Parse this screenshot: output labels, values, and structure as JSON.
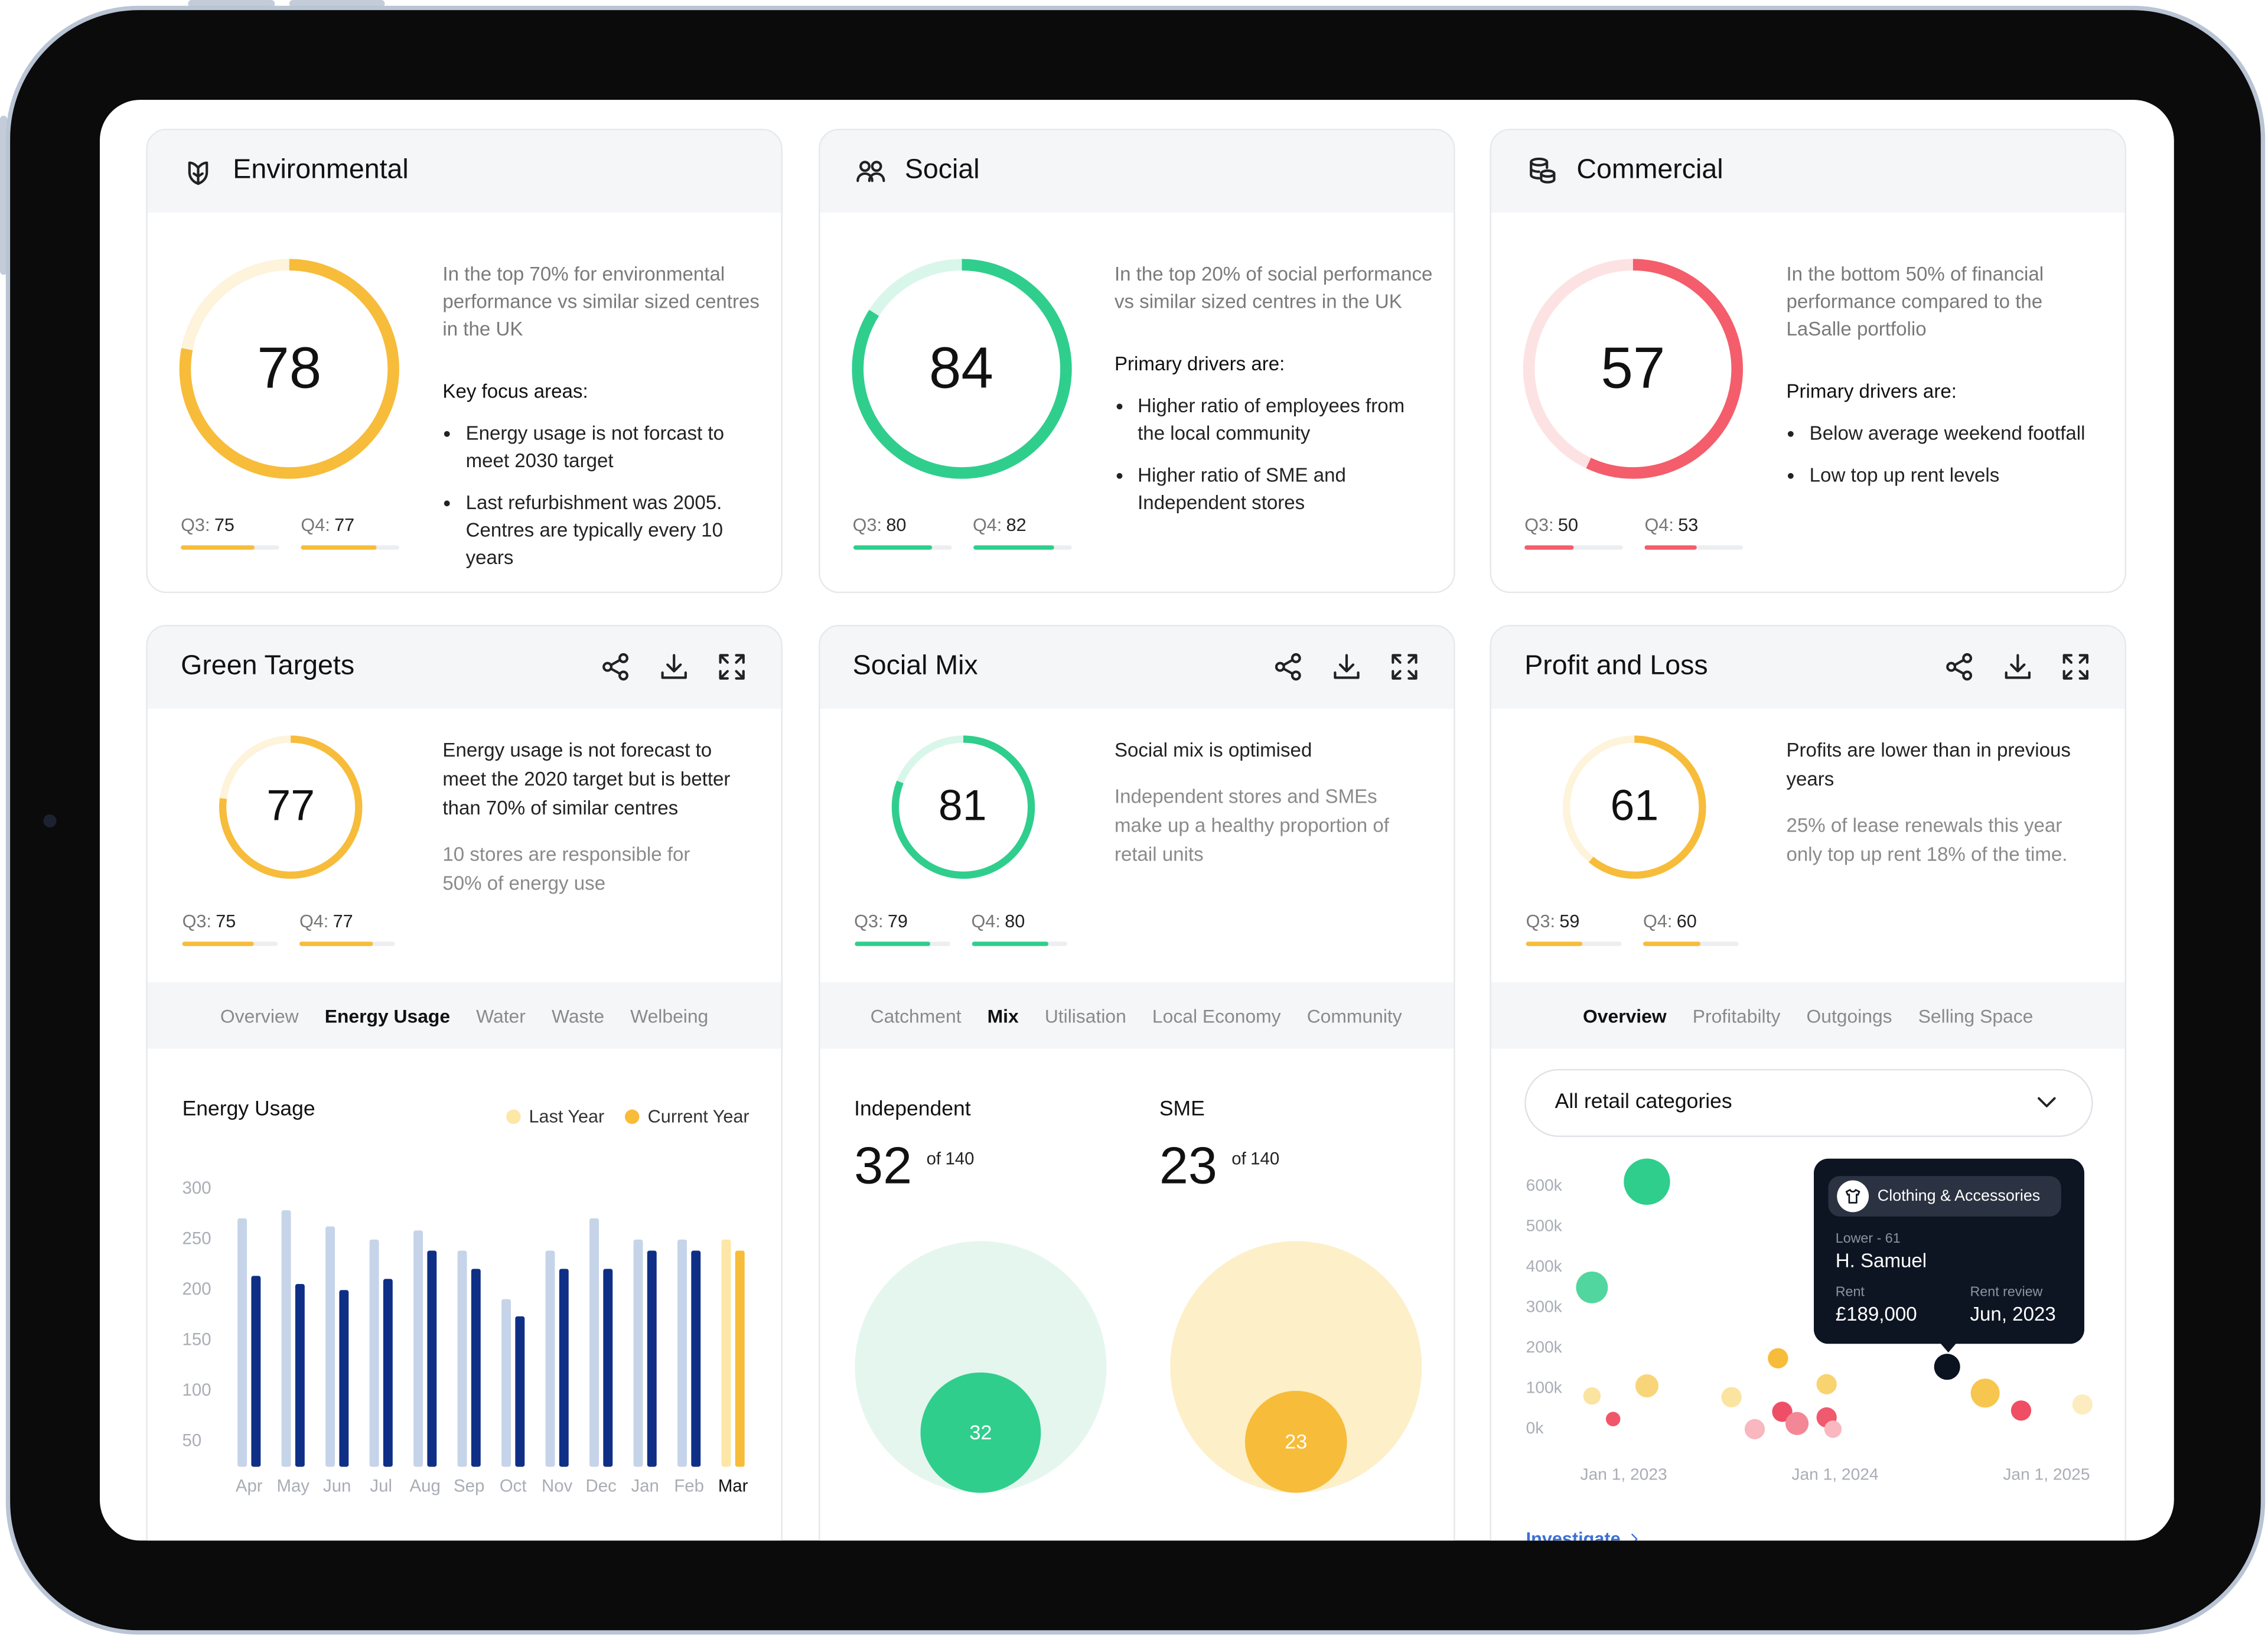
{
  "score_cards": [
    {
      "title": "Environmental",
      "score": 78,
      "color": "#f7bc3a",
      "description": "In the top 70% for environmental performance vs similar sized centres in the UK",
      "list_title": "Key focus areas:",
      "items": [
        "Energy usage is not forcast to meet 2030 target",
        "Last refurbishment was 2005. Centres are typically every 10 years"
      ],
      "quarters": [
        {
          "label": "Q3:",
          "value": 75
        },
        {
          "label": "Q4:",
          "value": 77
        }
      ]
    },
    {
      "title": "Social",
      "score": 84,
      "color": "#2fce8d",
      "description": "In the top 20% of social performance vs similar sized centres in the UK",
      "list_title": "Primary drivers are:",
      "items": [
        "Higher ratio of employees from the local community",
        "Higher ratio of SME and Independent stores"
      ],
      "quarters": [
        {
          "label": "Q3:",
          "value": 80
        },
        {
          "label": "Q4:",
          "value": 82
        }
      ]
    },
    {
      "title": "Commercial",
      "score": 57,
      "color": "#f45d6b",
      "description": "In the bottom 50% of financial performance compared to the LaSalle portfolio",
      "list_title": "Primary drivers are:",
      "items": [
        "Below average weekend footfall",
        "Low top up rent levels"
      ],
      "quarters": [
        {
          "label": "Q3:",
          "value": 50
        },
        {
          "label": "Q4:",
          "value": 53
        }
      ]
    }
  ],
  "detail_cards": [
    {
      "title": "Green Targets",
      "score": 77,
      "color": "#f7bc3a",
      "headline": "Energy usage is not forecast to meet the 2020 target but is better than 70% of similar centres",
      "note": "10 stores are responsible for 50% of energy use",
      "quarters": [
        {
          "label": "Q3:",
          "value": 75
        },
        {
          "label": "Q4:",
          "value": 77
        }
      ],
      "tabs": [
        "Overview",
        "Energy Usage",
        "Water",
        "Waste",
        "Welbeing"
      ],
      "active_tab": 1
    },
    {
      "title": "Social Mix",
      "score": 81,
      "color": "#2fce8d",
      "headline": "Social mix is optimised",
      "note": "Independent stores and SMEs make up a healthy proportion of retail units",
      "quarters": [
        {
          "label": "Q3:",
          "value": 79
        },
        {
          "label": "Q4:",
          "value": 80
        }
      ],
      "tabs": [
        "Catchment",
        "Mix",
        "Utilisation",
        "Local Economy",
        "Community"
      ],
      "active_tab": 1
    },
    {
      "title": "Profit and Loss",
      "score": 61,
      "color": "#f7bc3a",
      "headline": "Profits are lower than in previous years",
      "note": "25% of lease renewals this year only top up rent 18% of the time.",
      "quarters": [
        {
          "label": "Q3:",
          "value": 59
        },
        {
          "label": "Q4:",
          "value": 60
        }
      ],
      "tabs": [
        "Overview",
        "Profitabilty",
        "Outgoings",
        "Selling Space"
      ],
      "active_tab": 0
    }
  ],
  "energy_chart": {
    "type": "bar",
    "title": "Energy Usage",
    "categories": [
      "Apr",
      "May",
      "Jun",
      "Jul",
      "Aug",
      "Sep",
      "Oct",
      "Nov",
      "Dec",
      "Jan",
      "Feb",
      "Mar"
    ],
    "series": [
      {
        "name": "Last Year",
        "color": "#c6d4e9",
        "highlight_color": "#fde7a6",
        "values": [
          271,
          279,
          263,
          250,
          259,
          239,
          191,
          239,
          271,
          250,
          250,
          250
        ]
      },
      {
        "name": "Current Year",
        "color": "#0f2f86",
        "highlight_color": "#f7bc3a",
        "values": [
          214,
          206,
          200,
          211,
          239,
          221,
          174,
          221,
          221,
          239,
          239,
          239
        ]
      }
    ],
    "highlight_category": "Mar",
    "ylim": [
      25,
      300
    ],
    "yticks": [
      50,
      100,
      150,
      200,
      250,
      300
    ],
    "grid": false
  },
  "social_mix": {
    "type": "bubble",
    "groups": [
      {
        "name": "Independent",
        "value": 32,
        "total": 140,
        "total_prefix": "of",
        "color": "#2fce8d",
        "background": "#e5f6ee"
      },
      {
        "name": "SME",
        "value": 23,
        "total": 140,
        "total_prefix": "of",
        "color": "#f7bc3a",
        "background": "#fdefc8"
      }
    ]
  },
  "profit_chart": {
    "type": "scatter",
    "filter": "All retail categories",
    "xlim": [
      2022.75,
      2025.22
    ],
    "xticks": [
      {
        "value": 2023,
        "label": "Jan 1, 2023"
      },
      {
        "value": 2024,
        "label": "Jan 1, 2024"
      },
      {
        "value": 2025,
        "label": "Jan 1, 2025"
      }
    ],
    "ylim": [
      0,
      600000
    ],
    "yticks": [
      {
        "value": 0,
        "label": "0k"
      },
      {
        "value": 100000,
        "label": "100k"
      },
      {
        "value": 200000,
        "label": "200k"
      },
      {
        "value": 300000,
        "label": "300k"
      },
      {
        "value": 400000,
        "label": "400k"
      },
      {
        "value": 500000,
        "label": "500k"
      },
      {
        "value": 600000,
        "label": "600k"
      }
    ],
    "points": [
      {
        "x": 2023.11,
        "y": 611000,
        "size": 16,
        "color": "#2fce8d"
      },
      {
        "x": 2022.85,
        "y": 350000,
        "size": 11,
        "color": "#52d69f"
      },
      {
        "x": 2022.85,
        "y": 82000,
        "size": 6,
        "color": "#fbe3a0"
      },
      {
        "x": 2022.95,
        "y": 25000,
        "size": 5,
        "color": "#f0566a"
      },
      {
        "x": 2023.11,
        "y": 107000,
        "size": 8,
        "color": "#f9d57a"
      },
      {
        "x": 2023.73,
        "y": 175000,
        "size": 7,
        "color": "#f7bc3a"
      },
      {
        "x": 2023.51,
        "y": 79000,
        "size": 7,
        "color": "#fbe3a0"
      },
      {
        "x": 2023.62,
        "y": 0,
        "size": 7,
        "color": "#f9b7c0"
      },
      {
        "x": 2023.75,
        "y": 43000,
        "size": 7,
        "color": "#ef4f66"
      },
      {
        "x": 2023.82,
        "y": 14000,
        "size": 8,
        "color": "#f48796"
      },
      {
        "x": 2023.96,
        "y": 29000,
        "size": 7,
        "color": "#ef5a6e"
      },
      {
        "x": 2023.99,
        "y": 0,
        "size": 6,
        "color": "#f9b7c0"
      },
      {
        "x": 2023.96,
        "y": 111000,
        "size": 7,
        "color": "#f9d36f"
      },
      {
        "x": 2024.53,
        "y": 154000,
        "size": 9,
        "color": "#0b1220"
      },
      {
        "x": 2024.71,
        "y": 89000,
        "size": 10,
        "color": "#f7c64e"
      },
      {
        "x": 2024.88,
        "y": 46000,
        "size": 7,
        "color": "#f04e63"
      },
      {
        "x": 2025.17,
        "y": 61000,
        "size": 7,
        "color": "#fdecc0"
      }
    ],
    "tooltip": {
      "category": "Clothing & Accessories",
      "band": "Lower - 61",
      "name": "H. Samuel",
      "rent_label": "Rent",
      "rent": "£189,000",
      "review_label": "Rent review",
      "review": "Jun, 2023"
    },
    "link": "Investigate"
  }
}
